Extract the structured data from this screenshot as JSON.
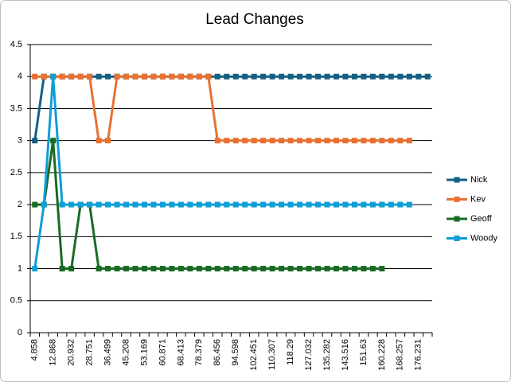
{
  "chart_data": {
    "type": "line",
    "title": "Lead Changes",
    "categories": [
      "4.858",
      null,
      "12.868",
      null,
      "20.932",
      null,
      "28.751",
      null,
      "36.499",
      null,
      "45.208",
      null,
      "53.169",
      null,
      "60.871",
      null,
      "68.413",
      null,
      "78.379",
      null,
      "86.456",
      null,
      "94.598",
      null,
      "102.451",
      null,
      "110.307",
      null,
      "118.29",
      null,
      "127.032",
      null,
      "135.282",
      null,
      "143.516",
      null,
      "151.63",
      null,
      "160.228",
      null,
      "168.257",
      null,
      "176.231",
      null
    ],
    "series": [
      {
        "name": "Nick",
        "color": "#156082",
        "values": [
          3,
          4,
          4,
          4,
          4,
          4,
          4,
          4,
          4,
          4,
          4,
          4,
          4,
          4,
          4,
          4,
          4,
          4,
          4,
          4,
          4,
          4,
          4,
          4,
          4,
          4,
          4,
          4,
          4,
          4,
          4,
          4,
          4,
          4,
          4,
          4,
          4,
          4,
          4,
          4,
          4,
          4,
          4,
          4
        ]
      },
      {
        "name": "Kev",
        "color": "#e97132",
        "values": [
          4,
          4,
          4,
          4,
          4,
          4,
          4,
          3,
          3,
          4,
          4,
          4,
          4,
          4,
          4,
          4,
          4,
          4,
          4,
          4,
          3,
          3,
          3,
          3,
          3,
          3,
          3,
          3,
          3,
          3,
          3,
          3,
          3,
          3,
          3,
          3,
          3,
          3,
          3,
          3,
          3,
          3,
          null,
          null
        ]
      },
      {
        "name": "Geoff",
        "color": "#196b24",
        "values": [
          2,
          2,
          3,
          1,
          1,
          2,
          2,
          1,
          1,
          1,
          1,
          1,
          1,
          1,
          1,
          1,
          1,
          1,
          1,
          1,
          1,
          1,
          1,
          1,
          1,
          1,
          1,
          1,
          1,
          1,
          1,
          1,
          1,
          1,
          1,
          1,
          1,
          1,
          1,
          null,
          null,
          null,
          null,
          null
        ]
      },
      {
        "name": "Woody",
        "color": "#0f9ed5",
        "values": [
          1,
          2,
          4,
          2,
          2,
          2,
          2,
          2,
          2,
          2,
          2,
          2,
          2,
          2,
          2,
          2,
          2,
          2,
          2,
          2,
          2,
          2,
          2,
          2,
          2,
          2,
          2,
          2,
          2,
          2,
          2,
          2,
          2,
          2,
          2,
          2,
          2,
          2,
          2,
          2,
          2,
          2,
          null,
          null
        ]
      }
    ],
    "ylim": [
      0,
      4.5
    ],
    "yticks": [
      0,
      0.5,
      1,
      1.5,
      2,
      2.5,
      3,
      3.5,
      4,
      4.5
    ],
    "grid": true,
    "legend": "right"
  }
}
